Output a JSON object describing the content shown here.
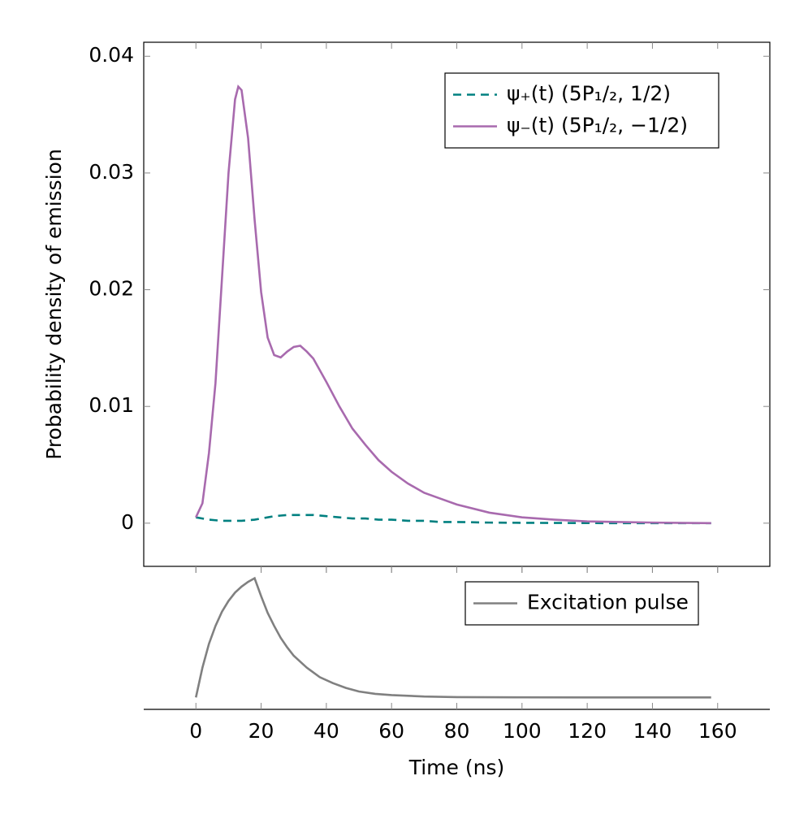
{
  "chart_data": [
    {
      "type": "line",
      "y_label": "Probability density of emission",
      "x": [
        0,
        2,
        4,
        6,
        8,
        10,
        12,
        13,
        14,
        16,
        18,
        20,
        22,
        24,
        26,
        28,
        30,
        32,
        34,
        36,
        40,
        44,
        48,
        52,
        56,
        60,
        65,
        70,
        75,
        80,
        90,
        100,
        110,
        120,
        130,
        140,
        150,
        158
      ],
      "series": [
        {
          "name": "ψ₊(t) (5P₁/₂, 1/2)",
          "color": "#008080",
          "dash": true,
          "values": [
            0.0005,
            0.0004,
            0.0003,
            0.00025,
            0.0002,
            0.0002,
            0.0002,
            0.0002,
            0.0002,
            0.00025,
            0.0003,
            0.0004,
            0.0005,
            0.0006,
            0.00065,
            0.0007,
            0.0007,
            0.0007,
            0.0007,
            0.0007,
            0.0006,
            0.0005,
            0.0004,
            0.0004,
            0.0003,
            0.0003,
            0.0002,
            0.0002,
            0.0001,
            0.0001,
            5e-05,
            3e-05,
            2e-05,
            1e-05,
            0,
            0,
            0,
            0
          ]
        },
        {
          "name": "ψ₋(t) (5P₁/₂, −1/2)",
          "color": "#a86aae",
          "dash": false,
          "values": [
            0.0005,
            0.0017,
            0.006,
            0.012,
            0.021,
            0.03,
            0.0363,
            0.0374,
            0.0371,
            0.033,
            0.026,
            0.0198,
            0.0159,
            0.0144,
            0.0142,
            0.0147,
            0.0151,
            0.0152,
            0.0147,
            0.0141,
            0.0121,
            0.01,
            0.0081,
            0.0067,
            0.0054,
            0.0044,
            0.0034,
            0.0026,
            0.0021,
            0.0016,
            0.0009,
            0.0005,
            0.0003,
            0.00015,
            0.0001,
            5e-05,
            2e-05,
            0
          ]
        }
      ],
      "xlim": [
        -16,
        176
      ],
      "xticks": [
        0,
        20,
        40,
        60,
        80,
        100,
        120,
        140,
        160
      ],
      "ylim": [
        -0.0037,
        0.0412
      ],
      "yticks": [
        0,
        0.01,
        0.02,
        0.03,
        0.04
      ],
      "legend": "upper right"
    },
    {
      "type": "line",
      "x_label": "Time (ns)",
      "x": [
        0,
        2,
        4,
        6,
        8,
        10,
        12,
        14,
        16,
        18,
        20,
        22,
        24,
        26,
        28,
        30,
        34,
        38,
        42,
        46,
        50,
        55,
        60,
        70,
        80,
        100,
        120,
        158
      ],
      "series": [
        {
          "name": "Excitation pulse",
          "color": "#808080",
          "dash": false,
          "values": [
            0,
            0.25,
            0.45,
            0.6,
            0.72,
            0.81,
            0.88,
            0.93,
            0.97,
            1,
            0.85,
            0.71,
            0.6,
            0.5,
            0.42,
            0.35,
            0.25,
            0.17,
            0.12,
            0.08,
            0.05,
            0.03,
            0.02,
            0.008,
            0.003,
            0.001,
            0,
            0
          ]
        }
      ],
      "xlim": [
        -16,
        176
      ],
      "xticks": [
        0,
        20,
        40,
        60,
        80,
        100,
        120,
        140,
        160
      ],
      "ylim": [
        -0.1,
        1.1
      ],
      "legend": "upper right"
    }
  ]
}
